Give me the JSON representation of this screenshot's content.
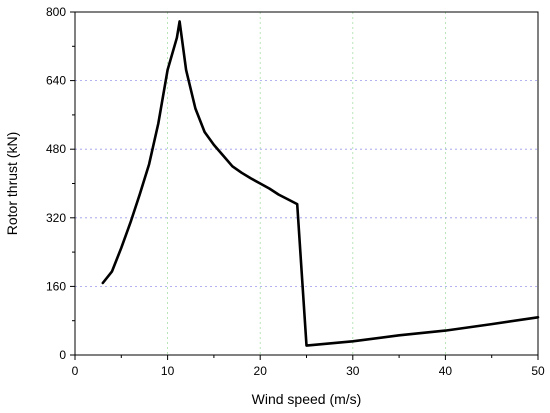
{
  "chart_data": {
    "type": "line",
    "title": "",
    "xlabel": "Wind speed (m/s)",
    "ylabel": "Rotor thrust (kN)",
    "xlim": [
      0,
      50
    ],
    "ylim": [
      0,
      800
    ],
    "xticks": [
      0,
      10,
      20,
      30,
      40,
      50
    ],
    "yticks": [
      0,
      160,
      320,
      480,
      640,
      800
    ],
    "x_minor_step": 5,
    "y_minor_step": 80,
    "grid": true,
    "legend": "none",
    "series": [
      {
        "color": "#000000",
        "x": [
          3,
          4,
          5,
          6,
          7,
          8,
          9,
          10,
          11,
          11.3,
          12,
          13,
          14,
          15,
          16,
          17,
          18,
          19,
          20,
          21,
          22,
          23,
          24,
          25,
          30,
          35,
          40,
          45,
          50
        ],
        "y": [
          168,
          195,
          250,
          310,
          375,
          445,
          540,
          665,
          740,
          778,
          665,
          575,
          520,
          490,
          465,
          440,
          425,
          412,
          400,
          388,
          374,
          363,
          352,
          22,
          32,
          46,
          57,
          72,
          88
        ]
      }
    ]
  }
}
